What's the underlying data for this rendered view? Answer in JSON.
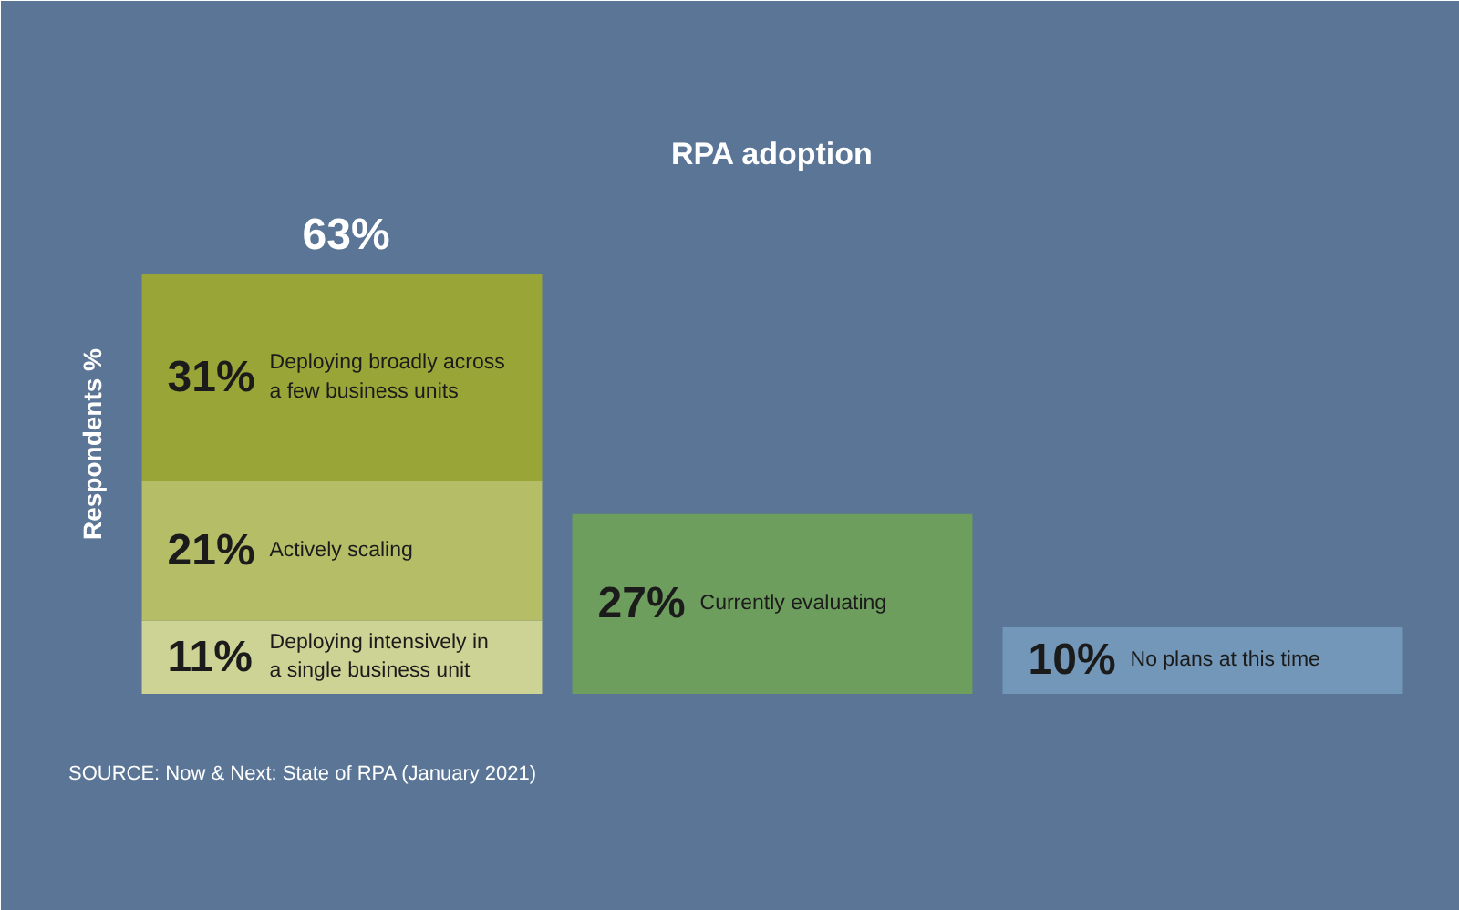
{
  "chart_data": {
    "type": "bar",
    "title": "RPA adoption",
    "ylabel": "Respondents %",
    "categories": [
      null,
      null,
      null
    ],
    "stacked": true,
    "ylim": [
      0,
      75
    ],
    "tick_labels": false,
    "grid": false,
    "series": [
      {
        "name": "Deploying intensively in a single business unit",
        "color": "#cdd394",
        "values": [
          11,
          null,
          null
        ],
        "value_labels": [
          "11%",
          null,
          null
        ]
      },
      {
        "name": "Actively scaling",
        "color": "#b5bd67",
        "values": [
          21,
          null,
          null
        ],
        "value_labels": [
          "21%",
          null,
          null
        ]
      },
      {
        "name": "Deploying broadly across a few business units",
        "color": "#9aa537",
        "values": [
          31,
          null,
          null
        ],
        "value_labels": [
          "31%",
          null,
          null
        ]
      },
      {
        "name": "Currently evaluating",
        "color": "#6e9e5e",
        "values": [
          null,
          27,
          null
        ],
        "value_labels": [
          null,
          "27%",
          null
        ]
      },
      {
        "name": "No plans at this time",
        "color": "#7397b8",
        "values": [
          null,
          null,
          10
        ],
        "value_labels": [
          null,
          null,
          "10%"
        ]
      }
    ],
    "totals": [
      "63%",
      null,
      null
    ],
    "annotations": [
      "SOURCE: Now & Next: State of RPA (January 2021)"
    ]
  }
}
